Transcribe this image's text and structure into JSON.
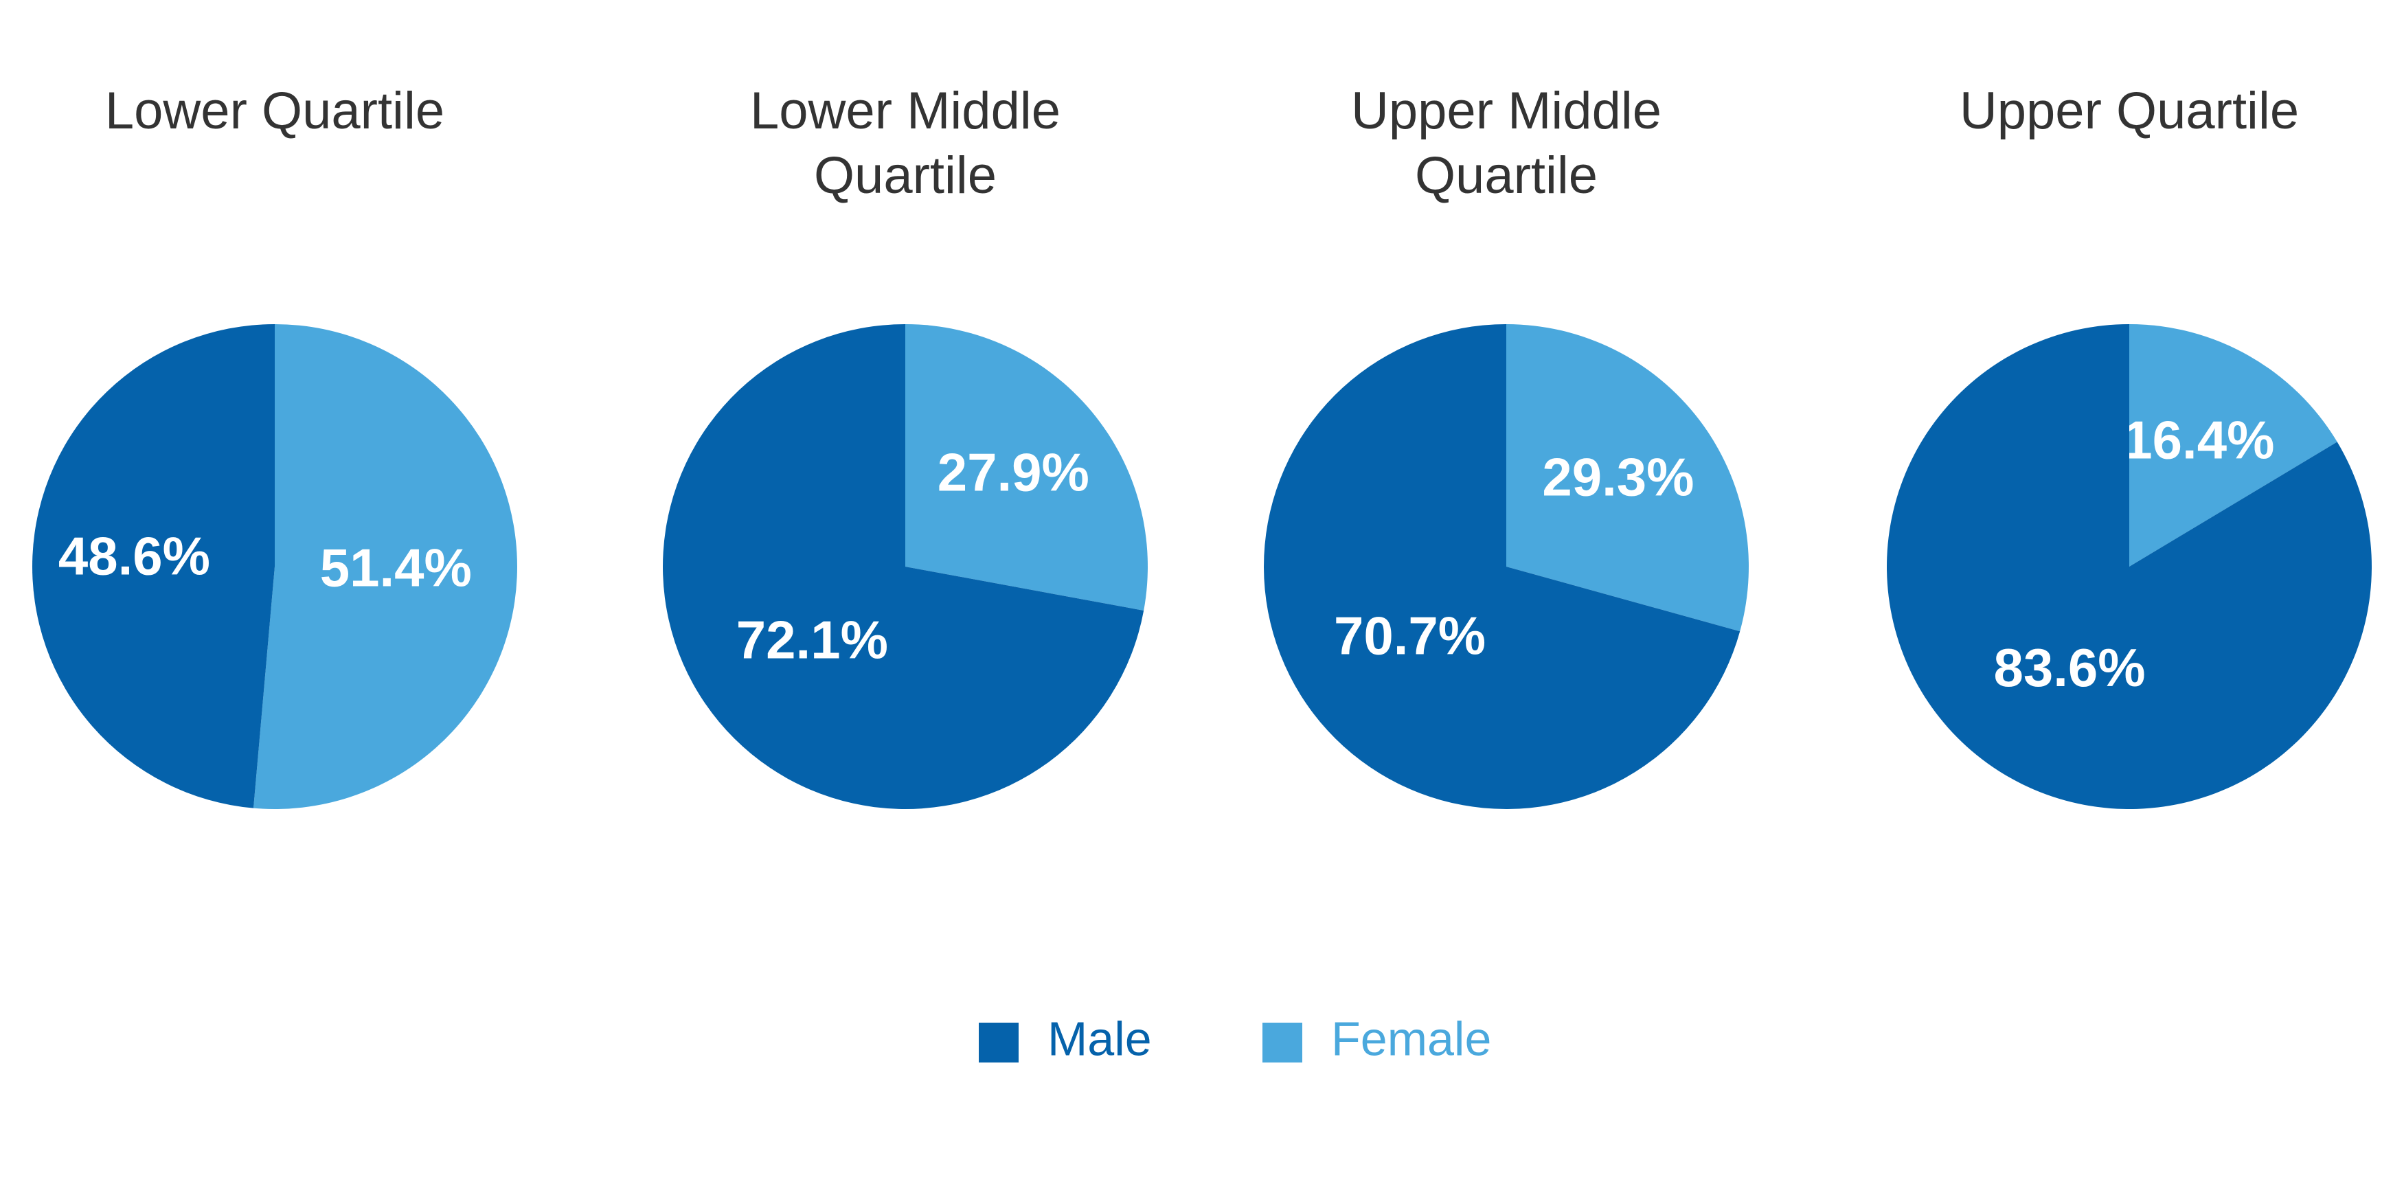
{
  "chart_data": {
    "type": "pie",
    "charts": [
      {
        "title_lines": [
          "Lower Quartile"
        ],
        "slices": [
          {
            "name": "Male",
            "value": 48.6,
            "label": "48.6%"
          },
          {
            "name": "Female",
            "value": 51.4,
            "label": "51.4%"
          }
        ]
      },
      {
        "title_lines": [
          "Lower Middle",
          "Quartile"
        ],
        "slices": [
          {
            "name": "Male",
            "value": 72.1,
            "label": "72.1%"
          },
          {
            "name": "Female",
            "value": 27.9,
            "label": "27.9%"
          }
        ]
      },
      {
        "title_lines": [
          "Upper Middle",
          "Quartile"
        ],
        "slices": [
          {
            "name": "Male",
            "value": 70.7,
            "label": "70.7%"
          },
          {
            "name": "Female",
            "value": 29.3,
            "label": "29.3%"
          }
        ]
      },
      {
        "title_lines": [
          "Upper Quartile"
        ],
        "slices": [
          {
            "name": "Male",
            "value": 83.6,
            "label": "83.6%"
          },
          {
            "name": "Female",
            "value": 16.4,
            "label": "16.4%"
          }
        ]
      }
    ],
    "legend": {
      "placement": "bottom-center",
      "items": [
        {
          "name": "Male",
          "color": "#0562ab"
        },
        {
          "name": "Female",
          "color": "#4aa8dd"
        }
      ]
    }
  }
}
